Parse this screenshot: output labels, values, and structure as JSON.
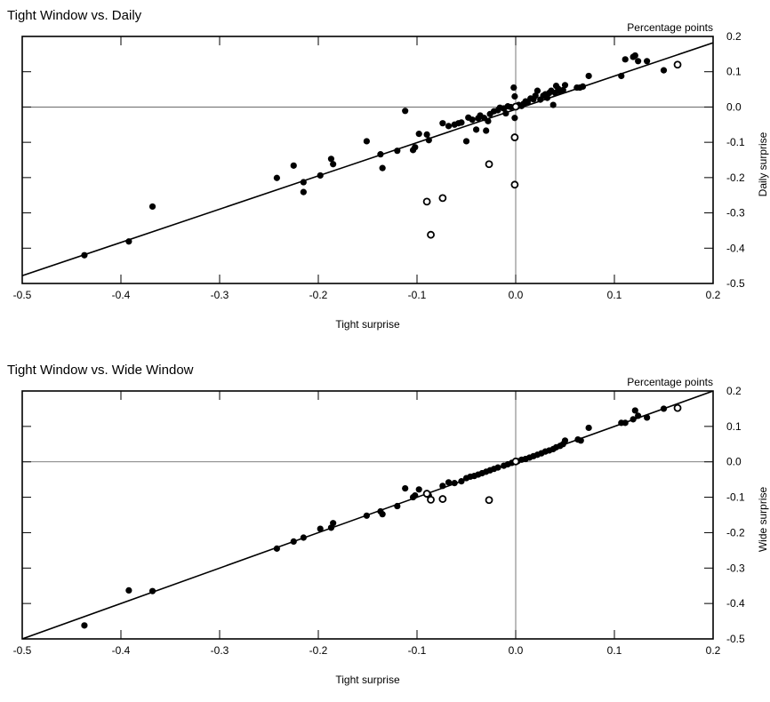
{
  "chart_data": [
    {
      "type": "scatter",
      "title": "Tight Window vs. Daily",
      "unit_note": "Percentage points",
      "xlabel": "Tight surprise",
      "ylabel": "Daily surprise",
      "xlim": [
        -0.5,
        0.2
      ],
      "ylim": [
        -0.5,
        0.2
      ],
      "xticks": [
        "-0.5",
        "-0.4",
        "-0.3",
        "-0.2",
        "-0.1",
        "0.0",
        "0.1",
        "0.2"
      ],
      "yticks": [
        "-0.5",
        "-0.4",
        "-0.3",
        "-0.2",
        "-0.1",
        "0.0",
        "0.1",
        "0.2"
      ],
      "reference_lines": {
        "x": 0,
        "y": 0
      },
      "fit_line": [
        [
          -0.5,
          -0.478
        ],
        [
          0.2,
          0.182
        ]
      ],
      "grid": false,
      "legend": "none",
      "series": [
        {
          "marker": "filled",
          "points": [
            [
              -0.437,
              -0.42
            ],
            [
              -0.392,
              -0.381
            ],
            [
              -0.368,
              -0.282
            ],
            [
              -0.242,
              -0.201
            ],
            [
              -0.225,
              -0.166
            ],
            [
              -0.215,
              -0.213
            ],
            [
              -0.215,
              -0.241
            ],
            [
              -0.198,
              -0.194
            ],
            [
              -0.187,
              -0.147
            ],
            [
              -0.185,
              -0.162
            ],
            [
              -0.151,
              -0.097
            ],
            [
              -0.137,
              -0.134
            ],
            [
              -0.135,
              -0.173
            ],
            [
              -0.12,
              -0.124
            ],
            [
              -0.112,
              -0.011
            ],
            [
              -0.104,
              -0.122
            ],
            [
              -0.102,
              -0.114
            ],
            [
              -0.098,
              -0.076
            ],
            [
              -0.09,
              -0.078
            ],
            [
              -0.088,
              -0.094
            ],
            [
              -0.074,
              -0.046
            ],
            [
              -0.068,
              -0.054
            ],
            [
              -0.062,
              -0.05
            ],
            [
              -0.058,
              -0.046
            ],
            [
              -0.055,
              -0.044
            ],
            [
              -0.05,
              -0.097
            ],
            [
              -0.048,
              -0.03
            ],
            [
              -0.044,
              -0.036
            ],
            [
              -0.04,
              -0.064
            ],
            [
              -0.038,
              -0.032
            ],
            [
              -0.036,
              -0.024
            ],
            [
              -0.032,
              -0.031
            ],
            [
              -0.03,
              -0.067
            ],
            [
              -0.028,
              -0.04
            ],
            [
              -0.026,
              -0.02
            ],
            [
              -0.022,
              -0.012
            ],
            [
              -0.018,
              -0.009
            ],
            [
              -0.016,
              -0.002
            ],
            [
              -0.012,
              -0.004
            ],
            [
              -0.01,
              -0.018
            ],
            [
              -0.008,
              0.002
            ],
            [
              -0.005,
              0.0
            ],
            [
              -0.002,
              0.055
            ],
            [
              -0.001,
              0.03
            ],
            [
              -0.001,
              -0.031
            ],
            [
              0.003,
              0.006
            ],
            [
              0.006,
              0.003
            ],
            [
              0.008,
              0.009
            ],
            [
              0.01,
              0.016
            ],
            [
              0.012,
              0.012
            ],
            [
              0.015,
              0.024
            ],
            [
              0.018,
              0.022
            ],
            [
              0.02,
              0.032
            ],
            [
              0.022,
              0.046
            ],
            [
              0.025,
              0.021
            ],
            [
              0.028,
              0.032
            ],
            [
              0.03,
              0.036
            ],
            [
              0.032,
              0.026
            ],
            [
              0.034,
              0.04
            ],
            [
              0.036,
              0.046
            ],
            [
              0.038,
              0.006
            ],
            [
              0.04,
              0.04
            ],
            [
              0.041,
              0.06
            ],
            [
              0.043,
              0.052
            ],
            [
              0.045,
              0.044
            ],
            [
              0.048,
              0.048
            ],
            [
              0.05,
              0.062
            ],
            [
              0.062,
              0.055
            ],
            [
              0.065,
              0.055
            ],
            [
              0.068,
              0.058
            ],
            [
              0.074,
              0.088
            ],
            [
              0.107,
              0.088
            ],
            [
              0.111,
              0.135
            ],
            [
              0.119,
              0.142
            ],
            [
              0.121,
              0.146
            ],
            [
              0.124,
              0.13
            ],
            [
              0.133,
              0.13
            ],
            [
              0.15,
              0.104
            ]
          ]
        },
        {
          "marker": "open",
          "points": [
            [
              -0.09,
              -0.268
            ],
            [
              -0.086,
              -0.362
            ],
            [
              -0.074,
              -0.258
            ],
            [
              -0.027,
              -0.162
            ],
            [
              -0.001,
              -0.086
            ],
            [
              -0.001,
              -0.22
            ],
            [
              0.0,
              0.001
            ],
            [
              0.164,
              0.12
            ]
          ]
        }
      ]
    },
    {
      "type": "scatter",
      "title": "Tight Window vs. Wide Window",
      "unit_note": "Percentage points",
      "xlabel": "Tight surprise",
      "ylabel": "Wide surprise",
      "xlim": [
        -0.5,
        0.2
      ],
      "ylim": [
        -0.5,
        0.2
      ],
      "xticks": [
        "-0.5",
        "-0.4",
        "-0.3",
        "-0.2",
        "-0.1",
        "0.0",
        "0.1",
        "0.2"
      ],
      "yticks": [
        "-0.5",
        "-0.4",
        "-0.3",
        "-0.2",
        "-0.1",
        "0.0",
        "0.1",
        "0.2"
      ],
      "reference_lines": {
        "x": 0,
        "y": 0
      },
      "fit_line": [
        [
          -0.5,
          -0.5
        ],
        [
          0.2,
          0.2
        ]
      ],
      "grid": false,
      "legend": "none",
      "series": [
        {
          "marker": "filled",
          "points": [
            [
              -0.437,
              -0.462
            ],
            [
              -0.392,
              -0.363
            ],
            [
              -0.368,
              -0.365
            ],
            [
              -0.242,
              -0.245
            ],
            [
              -0.225,
              -0.225
            ],
            [
              -0.215,
              -0.214
            ],
            [
              -0.198,
              -0.189
            ],
            [
              -0.187,
              -0.186
            ],
            [
              -0.185,
              -0.173
            ],
            [
              -0.151,
              -0.152
            ],
            [
              -0.137,
              -0.14
            ],
            [
              -0.135,
              -0.148
            ],
            [
              -0.12,
              -0.125
            ],
            [
              -0.112,
              -0.075
            ],
            [
              -0.104,
              -0.1
            ],
            [
              -0.102,
              -0.095
            ],
            [
              -0.098,
              -0.078
            ],
            [
              -0.09,
              -0.09
            ],
            [
              -0.088,
              -0.095
            ],
            [
              -0.074,
              -0.068
            ],
            [
              -0.068,
              -0.058
            ],
            [
              -0.062,
              -0.06
            ],
            [
              -0.055,
              -0.055
            ],
            [
              -0.05,
              -0.046
            ],
            [
              -0.046,
              -0.042
            ],
            [
              -0.042,
              -0.04
            ],
            [
              -0.038,
              -0.036
            ],
            [
              -0.034,
              -0.032
            ],
            [
              -0.03,
              -0.028
            ],
            [
              -0.026,
              -0.024
            ],
            [
              -0.022,
              -0.02
            ],
            [
              -0.018,
              -0.016
            ],
            [
              -0.012,
              -0.011
            ],
            [
              -0.008,
              -0.007
            ],
            [
              -0.004,
              -0.003
            ],
            [
              0.002,
              0.002
            ],
            [
              0.006,
              0.006
            ],
            [
              0.01,
              0.008
            ],
            [
              0.014,
              0.012
            ],
            [
              0.018,
              0.016
            ],
            [
              0.022,
              0.02
            ],
            [
              0.026,
              0.024
            ],
            [
              0.03,
              0.029
            ],
            [
              0.034,
              0.032
            ],
            [
              0.038,
              0.036
            ],
            [
              0.041,
              0.041
            ],
            [
              0.045,
              0.045
            ],
            [
              0.048,
              0.05
            ],
            [
              0.05,
              0.06
            ],
            [
              0.063,
              0.063
            ],
            [
              0.066,
              0.06
            ],
            [
              0.074,
              0.096
            ],
            [
              0.107,
              0.11
            ],
            [
              0.111,
              0.11
            ],
            [
              0.119,
              0.12
            ],
            [
              0.121,
              0.145
            ],
            [
              0.124,
              0.13
            ],
            [
              0.133,
              0.125
            ],
            [
              0.15,
              0.15
            ]
          ]
        },
        {
          "marker": "open",
          "points": [
            [
              -0.09,
              -0.09
            ],
            [
              -0.086,
              -0.107
            ],
            [
              -0.074,
              -0.105
            ],
            [
              -0.027,
              -0.108
            ],
            [
              0.0,
              0.001
            ],
            [
              0.164,
              0.152
            ]
          ]
        }
      ]
    }
  ]
}
